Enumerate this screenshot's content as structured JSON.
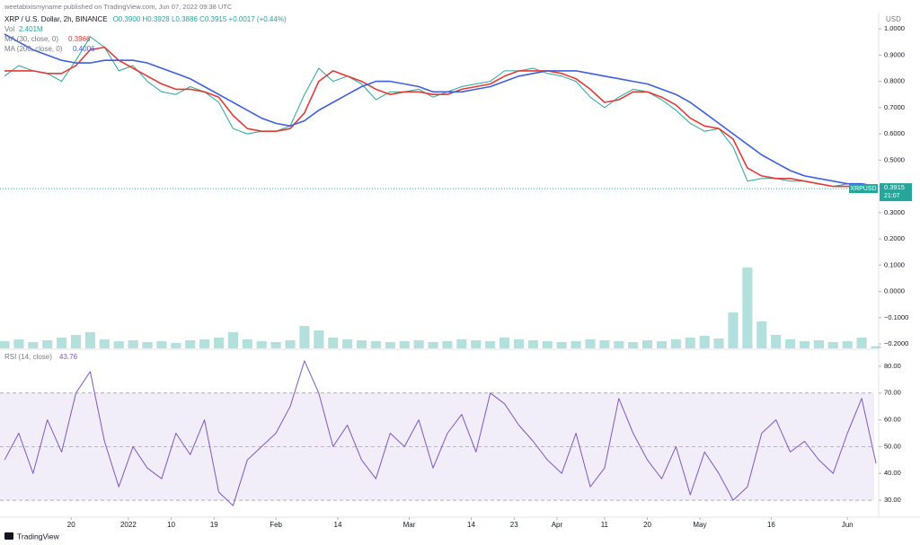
{
  "header": {
    "author_line": "weetabixismyname published on TradingView.com, Jun 07, 2022 09:38 UTC",
    "ohlc": "O0.3900 H0.3928 L0.3886 C0.3915 +0.0017 (+0.44%)",
    "price_tag": "XRPUSD",
    "countdown": "21:07",
    "footer": "TradingView"
  },
  "chart_data": [
    {
      "type": "line",
      "axis_label": "USD",
      "xlim": [
        0,
        61
      ],
      "ylim": [
        -0.217,
        1.062
      ],
      "yticks": [
        {
          "value": 1,
          "label": "1.0000"
        },
        {
          "value": 0.9,
          "label": "0.9000"
        },
        {
          "value": 0.8,
          "label": "0.8000"
        },
        {
          "value": 0.7,
          "label": "0.7000"
        },
        {
          "value": 0.6,
          "label": "0.6000"
        },
        {
          "value": 0.5,
          "label": "0.5000"
        },
        {
          "value": 0.4,
          "label": "0.4000"
        },
        {
          "value": 0.3,
          "label": "0.3000"
        },
        {
          "value": 0.2,
          "label": "0.2000"
        },
        {
          "value": 0.1,
          "label": "0.1000"
        },
        {
          "value": 0,
          "label": "0.0000"
        },
        {
          "value": -0.1,
          "label": "−0.1000"
        },
        {
          "value": -0.2,
          "label": "−0.2000"
        }
      ],
      "y2lim": [
        0,
        100
      ],
      "grid": false,
      "series": [
        {
          "name": "XRP / U.S. Dollar, 2h, BINANCE",
          "color": "#26a69a",
          "last_value_label": "0.3915",
          "values": [
            0.82,
            0.86,
            0.84,
            0.83,
            0.8,
            0.88,
            0.97,
            0.93,
            0.84,
            0.86,
            0.8,
            0.76,
            0.75,
            0.78,
            0.76,
            0.72,
            0.62,
            0.6,
            0.61,
            0.61,
            0.63,
            0.75,
            0.85,
            0.8,
            0.82,
            0.79,
            0.73,
            0.76,
            0.76,
            0.77,
            0.74,
            0.76,
            0.78,
            0.79,
            0.8,
            0.84,
            0.84,
            0.85,
            0.83,
            0.82,
            0.8,
            0.74,
            0.7,
            0.74,
            0.77,
            0.76,
            0.73,
            0.69,
            0.64,
            0.61,
            0.62,
            0.55,
            0.42,
            0.43,
            0.43,
            0.42,
            0.42,
            0.41,
            0.4,
            0.41,
            0.4,
            0.3915
          ]
        },
        {
          "name": "Vol",
          "color": "#26a69a",
          "axis": "y2",
          "last_value_label": "2.401M",
          "values": [
            8,
            10,
            7,
            9,
            12,
            15,
            18,
            10,
            8,
            9,
            7,
            8,
            6,
            9,
            10,
            12,
            18,
            10,
            8,
            7,
            9,
            25,
            20,
            12,
            10,
            9,
            8,
            7,
            8,
            9,
            7,
            8,
            10,
            9,
            8,
            12,
            10,
            9,
            8,
            7,
            8,
            10,
            9,
            8,
            7,
            9,
            8,
            10,
            12,
            14,
            11,
            40,
            90,
            30,
            15,
            10,
            8,
            9,
            7,
            8,
            12,
            2.401
          ]
        },
        {
          "name": "MA (30, close, 0)",
          "color": "#e53935",
          "last_value_label": "0.3966",
          "values": [
            0.84,
            0.84,
            0.84,
            0.83,
            0.83,
            0.86,
            0.92,
            0.93,
            0.88,
            0.85,
            0.82,
            0.79,
            0.77,
            0.77,
            0.76,
            0.74,
            0.67,
            0.62,
            0.61,
            0.61,
            0.62,
            0.68,
            0.8,
            0.84,
            0.82,
            0.8,
            0.77,
            0.75,
            0.76,
            0.76,
            0.75,
            0.75,
            0.77,
            0.78,
            0.79,
            0.82,
            0.84,
            0.84,
            0.84,
            0.83,
            0.81,
            0.77,
            0.72,
            0.73,
            0.76,
            0.76,
            0.74,
            0.71,
            0.66,
            0.63,
            0.62,
            0.58,
            0.47,
            0.44,
            0.43,
            0.43,
            0.42,
            0.41,
            0.4,
            0.4,
            0.4,
            0.3966
          ]
        },
        {
          "name": "MA (200, close, 0)",
          "color": "#3d5fe0",
          "last_value_label": "0.4006",
          "values": [
            0.98,
            0.95,
            0.92,
            0.9,
            0.88,
            0.87,
            0.87,
            0.88,
            0.88,
            0.88,
            0.87,
            0.85,
            0.83,
            0.81,
            0.78,
            0.75,
            0.72,
            0.69,
            0.66,
            0.64,
            0.63,
            0.65,
            0.69,
            0.72,
            0.75,
            0.78,
            0.8,
            0.8,
            0.79,
            0.78,
            0.76,
            0.76,
            0.76,
            0.77,
            0.78,
            0.8,
            0.82,
            0.83,
            0.84,
            0.84,
            0.84,
            0.83,
            0.82,
            0.81,
            0.8,
            0.79,
            0.77,
            0.75,
            0.72,
            0.68,
            0.64,
            0.6,
            0.56,
            0.52,
            0.49,
            0.46,
            0.44,
            0.43,
            0.42,
            0.41,
            0.41,
            0.4006
          ]
        }
      ]
    },
    {
      "type": "line",
      "xlim": [
        0,
        61
      ],
      "xticks": [
        {
          "value": 4.67,
          "label": "20"
        },
        {
          "value": 8.67,
          "label": "2022"
        },
        {
          "value": 11.67,
          "label": "10"
        },
        {
          "value": 14.67,
          "label": "19"
        },
        {
          "value": 19,
          "label": "Feb"
        },
        {
          "value": 23.33,
          "label": "14"
        },
        {
          "value": 28.33,
          "label": "Mar"
        },
        {
          "value": 32.67,
          "label": "14"
        },
        {
          "value": 35.67,
          "label": "23"
        },
        {
          "value": 38.67,
          "label": "Apr"
        },
        {
          "value": 42,
          "label": "11"
        },
        {
          "value": 45,
          "label": "20"
        },
        {
          "value": 48.67,
          "label": "May"
        },
        {
          "value": 53.67,
          "label": "16"
        },
        {
          "value": 59,
          "label": "Jun"
        }
      ],
      "ylim": [
        24,
        86
      ],
      "yticks": [
        {
          "value": 30,
          "label": "30.00"
        },
        {
          "value": 40,
          "label": "40.00"
        },
        {
          "value": 50,
          "label": "50.00"
        },
        {
          "value": 60,
          "label": "60.00"
        },
        {
          "value": 70,
          "label": "70.00"
        },
        {
          "value": 80,
          "label": "80.00"
        }
      ],
      "band": [
        30,
        70
      ],
      "midline": 50,
      "band_color": "#7e57c2",
      "series": [
        {
          "name": "RSI (14, close)",
          "color": "#7e57c2",
          "last_value_label": "43.76",
          "values": [
            45,
            55,
            40,
            60,
            48,
            70,
            78,
            52,
            35,
            50,
            42,
            38,
            55,
            47,
            60,
            33,
            28,
            45,
            50,
            55,
            65,
            82,
            70,
            50,
            58,
            45,
            38,
            55,
            50,
            60,
            42,
            55,
            62,
            48,
            70,
            66,
            58,
            52,
            45,
            40,
            55,
            35,
            42,
            68,
            55,
            45,
            38,
            50,
            32,
            48,
            40,
            30,
            35,
            55,
            60,
            48,
            52,
            45,
            40,
            55,
            68,
            43.76
          ]
        }
      ]
    }
  ]
}
